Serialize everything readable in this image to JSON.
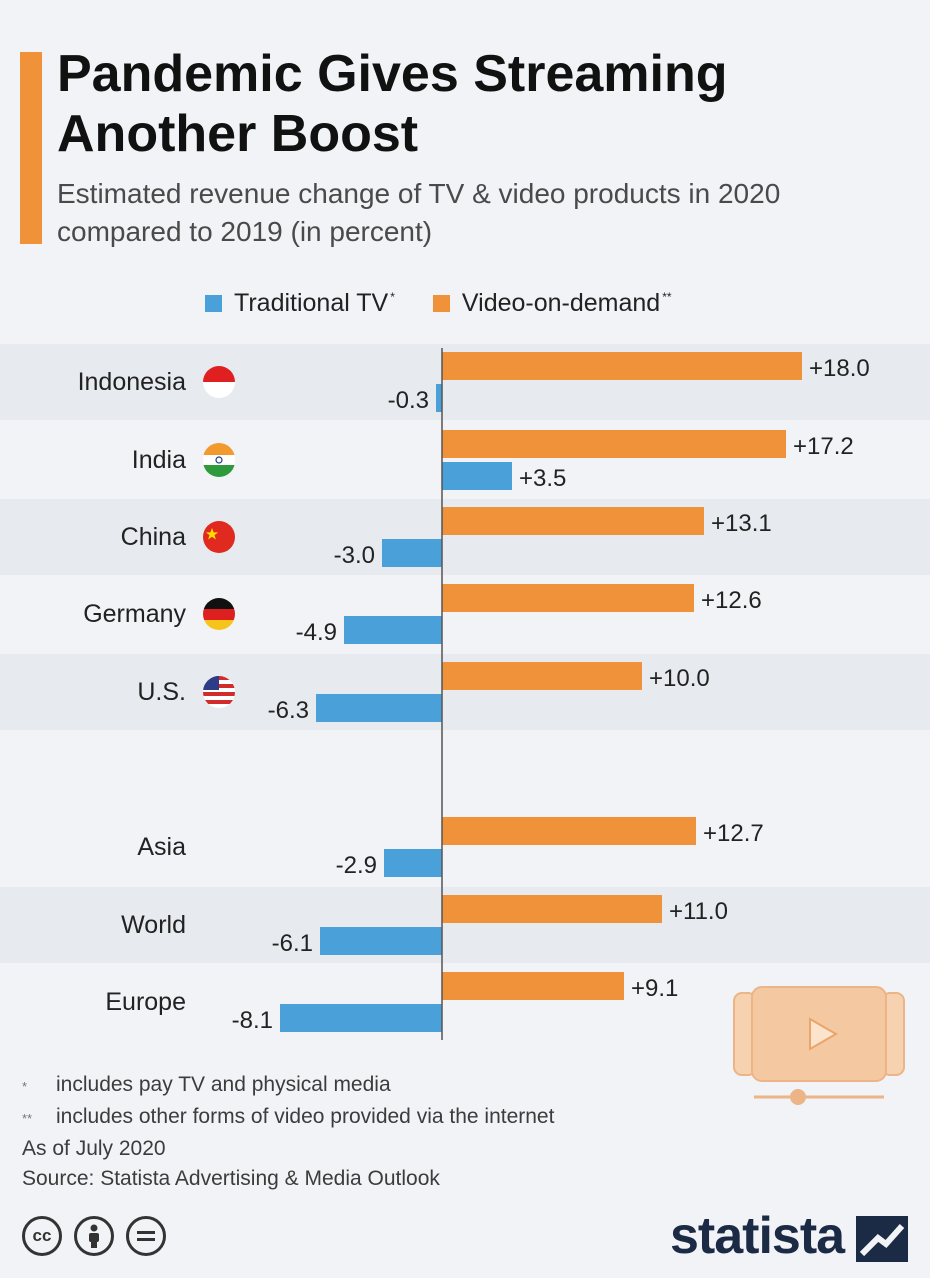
{
  "header": {
    "title": "Pandemic Gives Streaming Another Boost",
    "subtitle": "Estimated revenue change of TV & video products in 2020 compared to 2019 (in percent)"
  },
  "legend": {
    "traditional": {
      "label": "Traditional TV",
      "mark": "*",
      "color": "#4aa0d8"
    },
    "vod": {
      "label": "Video-on-demand",
      "mark": "**",
      "color": "#ef923a"
    }
  },
  "chart_data": {
    "type": "bar",
    "orientation": "horizontal",
    "categories": [
      "Indonesia",
      "India",
      "China",
      "Germany",
      "U.S.",
      "Asia",
      "World",
      "Europe"
    ],
    "series": [
      {
        "name": "Video-on-demand",
        "values": [
          18.0,
          17.2,
          13.1,
          12.6,
          10.0,
          12.7,
          11.0,
          9.1
        ],
        "labels": [
          "+18.0",
          "+17.2",
          "+13.1",
          "+12.6",
          "+10.0",
          "+12.7",
          "+11.0",
          "+9.1"
        ],
        "color": "#ef923a"
      },
      {
        "name": "Traditional TV",
        "values": [
          -0.3,
          3.5,
          -3.0,
          -4.9,
          -6.3,
          -2.9,
          -6.1,
          -8.1
        ],
        "labels": [
          "-0.3",
          "+3.5",
          "-3.0",
          "-4.9",
          "-6.3",
          "-2.9",
          "-6.1",
          "-8.1"
        ],
        "color": "#4aa0d8"
      }
    ],
    "flags": [
      "indonesia-flag-icon",
      "india-flag-icon",
      "china-flag-icon",
      "germany-flag-icon",
      "us-flag-icon",
      null,
      null,
      null
    ]
  },
  "footnotes": {
    "note1": "includes pay TV and physical media",
    "note2": "includes other forms of video provided via the internet",
    "asof": "As of July 2020",
    "source": "Source: Statista Advertising & Media Outlook"
  },
  "brand": {
    "name": "statista"
  }
}
